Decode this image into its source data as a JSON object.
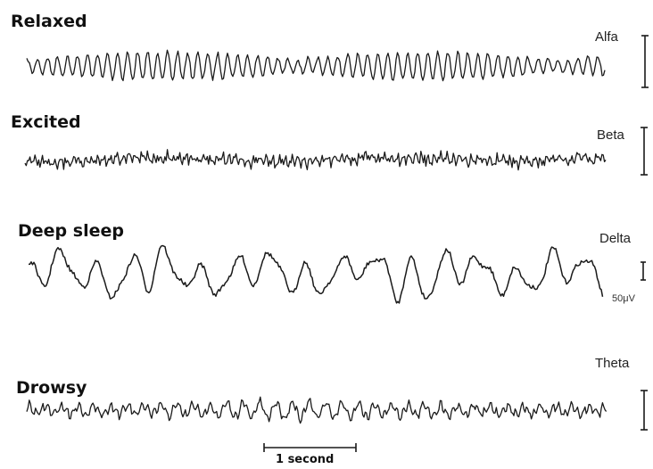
{
  "states": [
    {
      "label": "Relaxed",
      "band": "Alfa"
    },
    {
      "label": "Excited",
      "band": "Beta"
    },
    {
      "label": "Deep sleep",
      "band": "Delta"
    },
    {
      "label": "Drowsy",
      "band": "Theta"
    }
  ],
  "amplitude_unit": "50μV",
  "time_scale_label": "1 second",
  "colors": {
    "trace": "#1a1a1a",
    "background": "#ffffff"
  }
}
